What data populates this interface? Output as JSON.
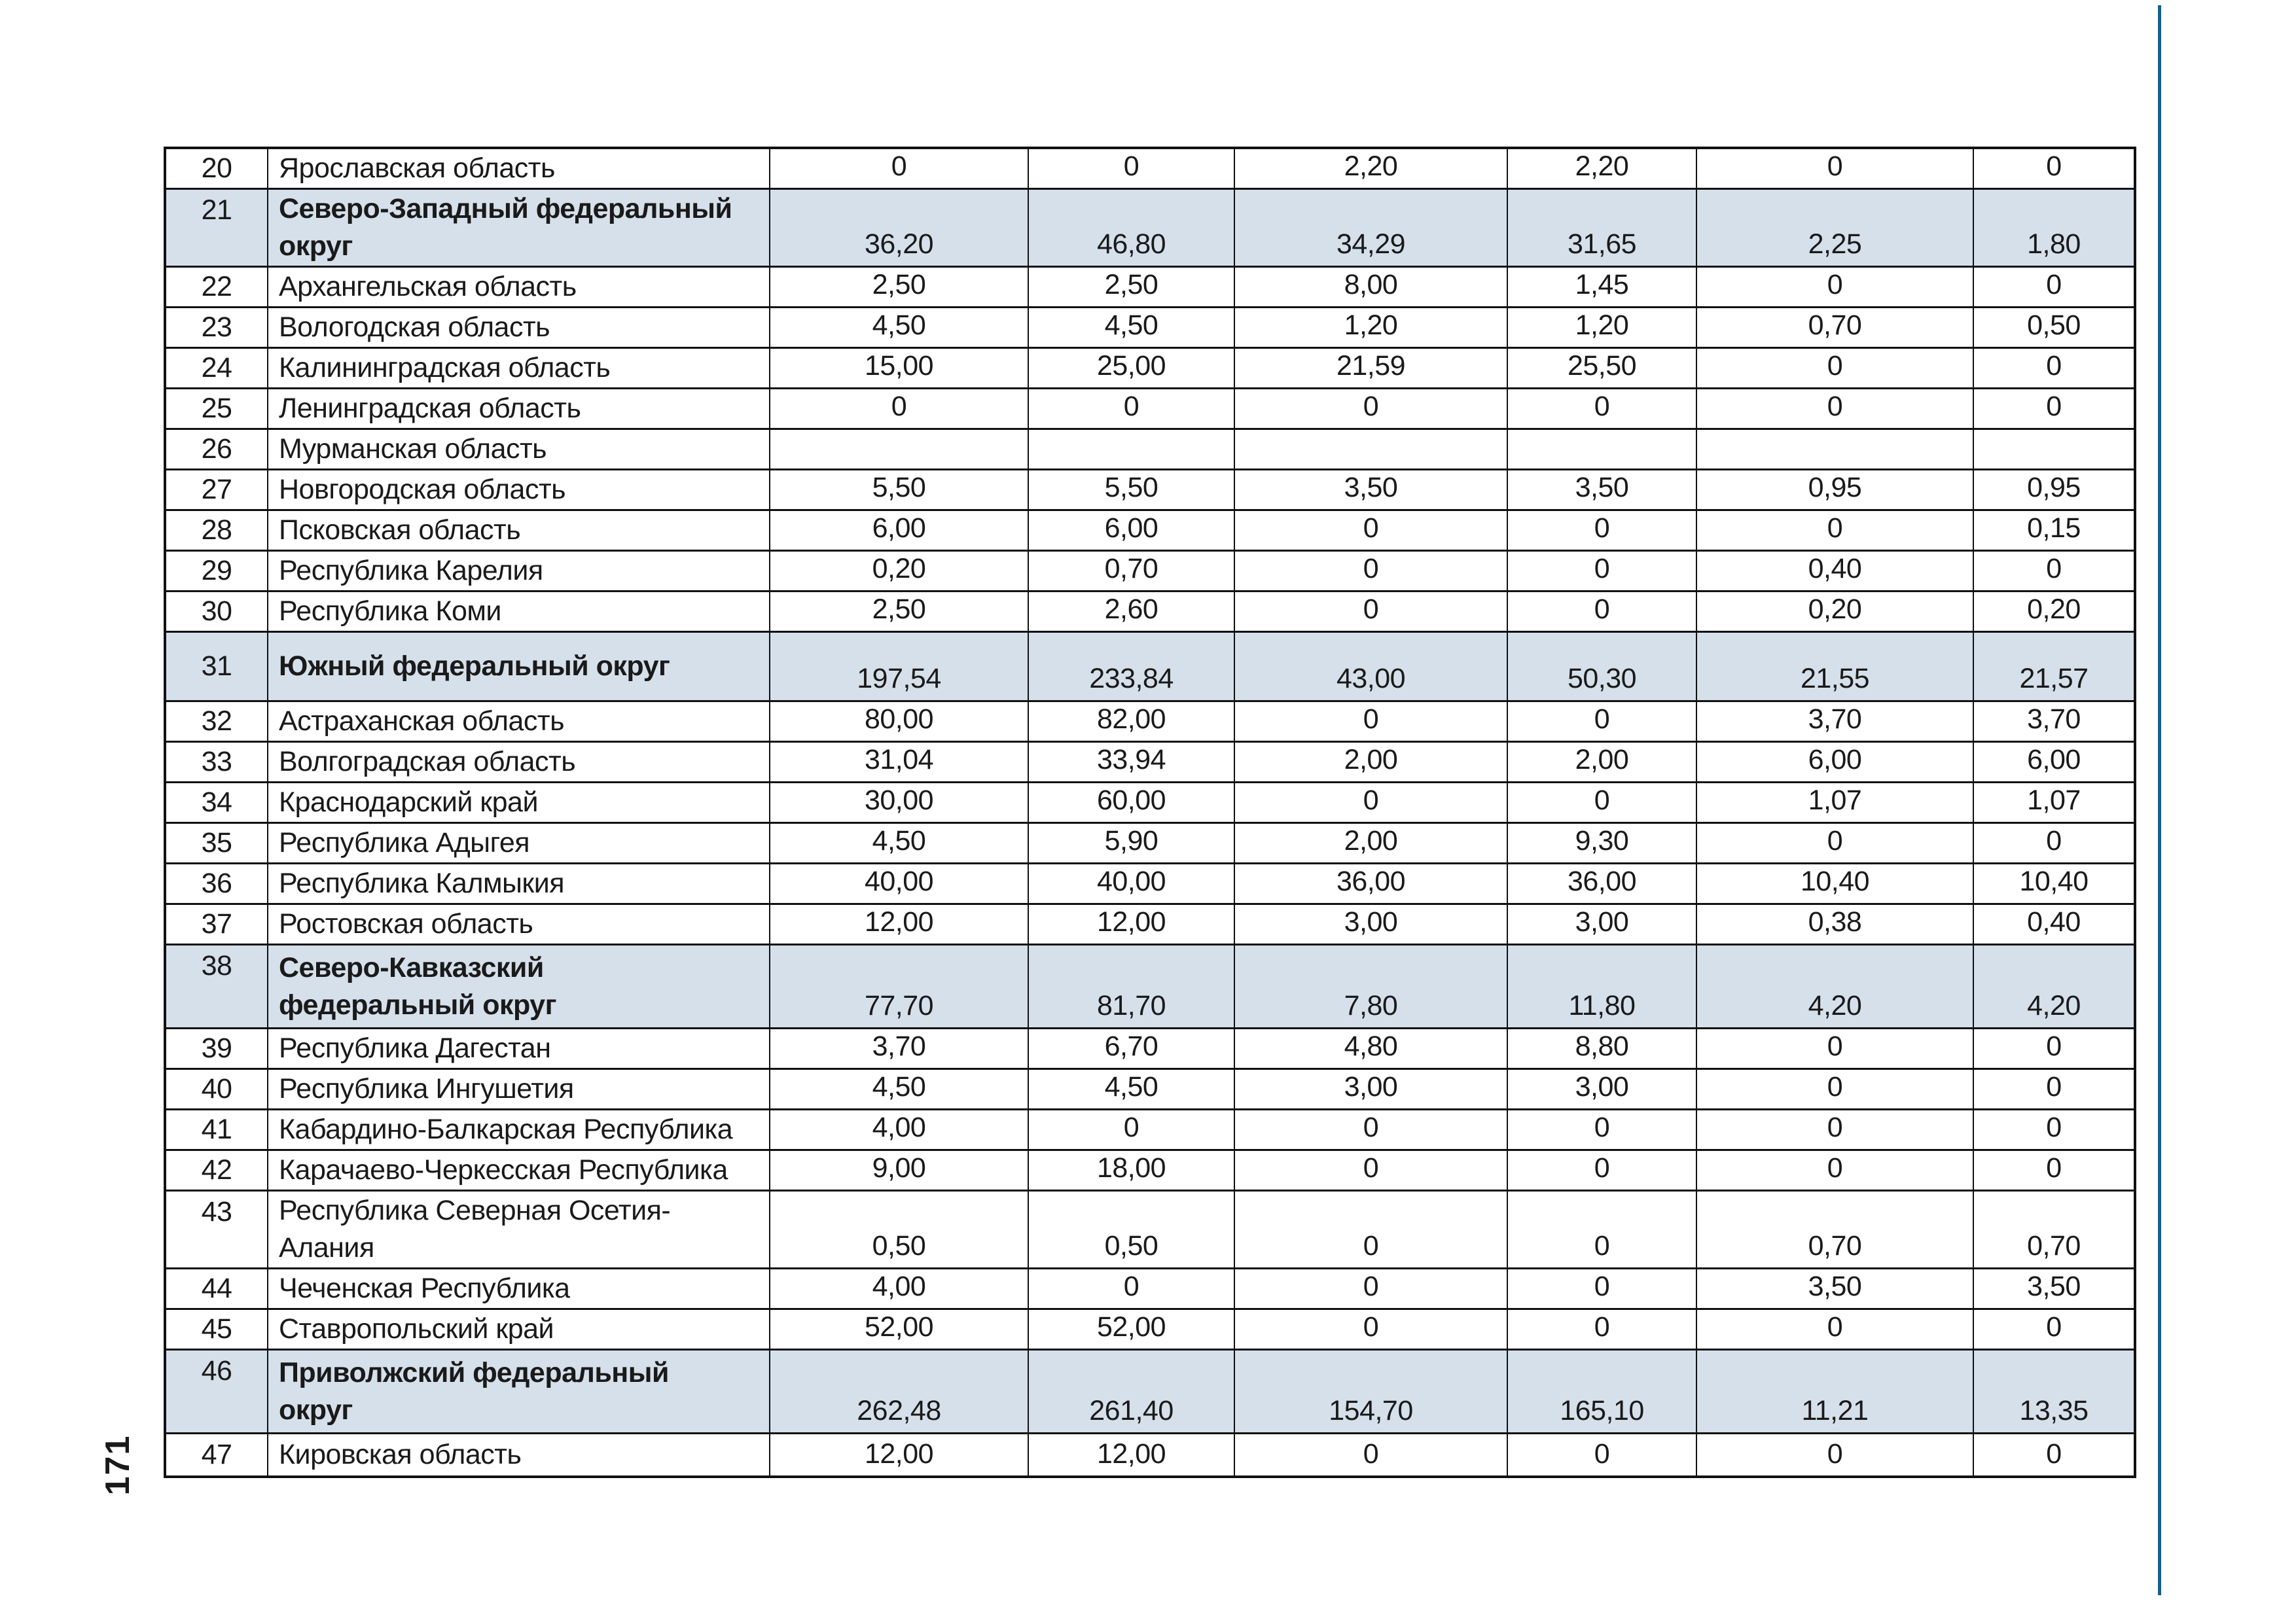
{
  "page": {
    "number": "171"
  },
  "colors": {
    "district_row_bg": "#d6e0eb",
    "edge_rule_blue": "#14608f",
    "border": "#111111",
    "text": "#1a1a1a"
  },
  "table": {
    "rows": [
      {
        "num": "20",
        "name": "Ярославская область",
        "district": false,
        "values": [
          "0",
          "0",
          "2,20",
          "2,20",
          "0",
          "0"
        ]
      },
      {
        "num": "21",
        "name": "Северо-Западный федеральный\nокруг",
        "district": true,
        "values": [
          "36,20",
          "46,80",
          "34,29",
          "31,65",
          "2,25",
          "1,80"
        ]
      },
      {
        "num": "22",
        "name": "Архангельская область",
        "district": false,
        "values": [
          "2,50",
          "2,50",
          "8,00",
          "1,45",
          "0",
          "0"
        ]
      },
      {
        "num": "23",
        "name": "Вологодская область",
        "district": false,
        "values": [
          "4,50",
          "4,50",
          "1,20",
          "1,20",
          "0,70",
          "0,50"
        ]
      },
      {
        "num": "24",
        "name": "Калининградская область",
        "district": false,
        "values": [
          "15,00",
          "25,00",
          "21,59",
          "25,50",
          "0",
          "0"
        ]
      },
      {
        "num": "25",
        "name": "Ленинградская область",
        "district": false,
        "values": [
          "0",
          "0",
          "0",
          "0",
          "0",
          "0"
        ]
      },
      {
        "num": "26",
        "name": "Мурманская область",
        "district": false,
        "values": [
          "",
          "",
          "",
          "",
          "",
          ""
        ]
      },
      {
        "num": "27",
        "name": "Новгородская область",
        "district": false,
        "values": [
          "5,50",
          "5,50",
          "3,50",
          "3,50",
          "0,95",
          "0,95"
        ]
      },
      {
        "num": "28",
        "name": "Псковская область",
        "district": false,
        "values": [
          "6,00",
          "6,00",
          "0",
          "0",
          "0",
          "0,15"
        ]
      },
      {
        "num": "29",
        "name": "Республика Карелия",
        "district": false,
        "values": [
          "0,20",
          "0,70",
          "0",
          "0",
          "0,40",
          "0"
        ]
      },
      {
        "num": "30",
        "name": "Республика Коми",
        "district": false,
        "values": [
          "2,50",
          "2,60",
          "0",
          "0",
          "0,20",
          "0,20"
        ]
      },
      {
        "num": "31",
        "name": "Южный федеральный округ",
        "district": true,
        "values": [
          "197,54",
          "233,84",
          "43,00",
          "50,30",
          "21,55",
          "21,57"
        ]
      },
      {
        "num": "32",
        "name": "Астраханская область",
        "district": false,
        "values": [
          "80,00",
          "82,00",
          "0",
          "0",
          "3,70",
          "3,70"
        ]
      },
      {
        "num": "33",
        "name": "Волгоградская область",
        "district": false,
        "values": [
          "31,04",
          "33,94",
          "2,00",
          "2,00",
          "6,00",
          "6,00"
        ]
      },
      {
        "num": "34",
        "name": "Краснодарский край",
        "district": false,
        "values": [
          "30,00",
          "60,00",
          "0",
          "0",
          "1,07",
          "1,07"
        ]
      },
      {
        "num": "35",
        "name": "Республика Адыгея",
        "district": false,
        "values": [
          "4,50",
          "5,90",
          "2,00",
          "9,30",
          "0",
          "0"
        ]
      },
      {
        "num": "36",
        "name": "Республика Калмыкия",
        "district": false,
        "values": [
          "40,00",
          "40,00",
          "36,00",
          "36,00",
          "10,40",
          "10,40"
        ]
      },
      {
        "num": "37",
        "name": "Ростовская область",
        "district": false,
        "values": [
          "12,00",
          "12,00",
          "3,00",
          "3,00",
          "0,38",
          "0,40"
        ]
      },
      {
        "num": "38",
        "name": "Северо-Кавказский\nфедеральный округ",
        "district": true,
        "values": [
          "77,70",
          "81,70",
          "7,80",
          "11,80",
          "4,20",
          "4,20"
        ]
      },
      {
        "num": "39",
        "name": "Республика Дагестан",
        "district": false,
        "values": [
          "3,70",
          "6,70",
          "4,80",
          "8,80",
          "0",
          "0"
        ]
      },
      {
        "num": "40",
        "name": "Республика Ингушетия",
        "district": false,
        "values": [
          "4,50",
          "4,50",
          "3,00",
          "3,00",
          "0",
          "0"
        ]
      },
      {
        "num": "41",
        "name": "Кабардино-Балкарская Республика",
        "district": false,
        "values": [
          "4,00",
          "0",
          "0",
          "0",
          "0",
          "0"
        ]
      },
      {
        "num": "42",
        "name": "Карачаево-Черкесская Республика",
        "district": false,
        "values": [
          "9,00",
          "18,00",
          "0",
          "0",
          "0",
          "0"
        ]
      },
      {
        "num": "43",
        "name": "Республика Северная Осетия-\nАлания",
        "district": false,
        "values": [
          "0,50",
          "0,50",
          "0",
          "0",
          "0,70",
          "0,70"
        ]
      },
      {
        "num": "44",
        "name": "Чеченская Республика",
        "district": false,
        "values": [
          "4,00",
          "0",
          "0",
          "0",
          "3,50",
          "3,50"
        ]
      },
      {
        "num": "45",
        "name": "Ставропольский край",
        "district": false,
        "values": [
          "52,00",
          "52,00",
          "0",
          "0",
          "0",
          "0"
        ]
      },
      {
        "num": "46",
        "name": "Приволжский федеральный\nокруг",
        "district": true,
        "values": [
          "262,48",
          "261,40",
          "154,70",
          "165,10",
          "11,21",
          "13,35"
        ]
      },
      {
        "num": "47",
        "name": "Кировская область",
        "district": false,
        "values": [
          "12,00",
          "12,00",
          "0",
          "0",
          "0",
          "0"
        ]
      }
    ]
  }
}
